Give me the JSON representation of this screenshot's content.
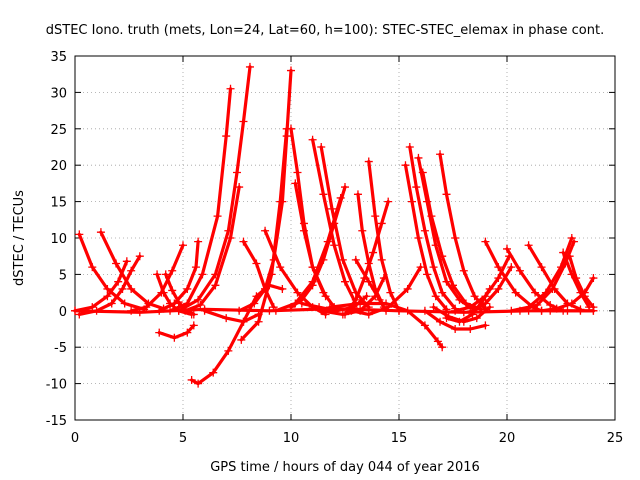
{
  "chart_data": {
    "type": "line",
    "title": "dSTEC Iono. truth (mets, Lon=24, Lat=60, h=100): STEC-STEC_elemax in phase cont.",
    "xlabel": "GPS time / hours of day 044 of year 2016",
    "ylabel": "dSTEC  / TECUs",
    "xlim": [
      0,
      25
    ],
    "ylim": [
      -15,
      35
    ],
    "xticks": [
      0,
      5,
      10,
      15,
      20,
      25
    ],
    "yticks": [
      -15,
      -10,
      -5,
      0,
      5,
      10,
      15,
      20,
      25,
      30,
      35
    ],
    "grid": true,
    "color": "#ff0000",
    "marker": "plus",
    "series": [
      {
        "x": [
          0.2,
          0.8,
          1.5,
          2.3,
          3.2
        ],
        "y": [
          10.5,
          6.0,
          3.0,
          1.0,
          0.2
        ]
      },
      {
        "x": [
          1.2,
          1.9,
          2.6,
          3.4,
          4.1
        ],
        "y": [
          10.8,
          6.5,
          3.0,
          1.0,
          0.3
        ]
      },
      {
        "x": [
          0.0,
          0.8,
          1.5,
          2.0,
          2.4
        ],
        "y": [
          0.0,
          0.5,
          2.0,
          4.0,
          6.8
        ]
      },
      {
        "x": [
          0.2,
          1.0,
          1.7,
          2.2,
          2.6,
          3.0
        ],
        "y": [
          -0.5,
          0.0,
          1.0,
          3.0,
          5.5,
          7.5
        ]
      },
      {
        "x": [
          2.6,
          3.3,
          4.0,
          4.5,
          5.0
        ],
        "y": [
          0.0,
          0.5,
          2.5,
          5.5,
          9.0
        ]
      },
      {
        "x": [
          3.8,
          4.1,
          4.4,
          4.8,
          5.4
        ],
        "y": [
          5.0,
          2.5,
          1.0,
          0.0,
          -0.5
        ]
      },
      {
        "x": [
          4.2,
          4.5,
          4.8,
          5.1,
          5.5
        ],
        "y": [
          5.0,
          2.8,
          1.2,
          0.2,
          -0.5
        ]
      },
      {
        "x": [
          3.9,
          4.6,
          5.2,
          5.6,
          5.7
        ],
        "y": [
          0.0,
          1.0,
          3.0,
          6.0,
          9.5
        ]
      },
      {
        "x": [
          3.9,
          4.6,
          5.2,
          5.5
        ],
        "y": [
          -3.0,
          -3.7,
          -3.0,
          -2.0
        ]
      },
      {
        "x": [
          4.4,
          5.2,
          5.9,
          6.6,
          7.0,
          7.2
        ],
        "y": [
          0.0,
          1.0,
          5.0,
          13.0,
          24.0,
          30.5
        ]
      },
      {
        "x": [
          4.8,
          5.7,
          6.5,
          7.1,
          7.5,
          7.8,
          8.1
        ],
        "y": [
          0.0,
          1.5,
          5.0,
          11.0,
          19.0,
          26.0,
          33.5
        ]
      },
      {
        "x": [
          5.1,
          5.8,
          6.5,
          7.2,
          7.6
        ],
        "y": [
          0.0,
          0.8,
          3.5,
          10.0,
          17.0
        ]
      },
      {
        "x": [
          5.4,
          5.7,
          6.4,
          7.1,
          7.8,
          8.4,
          9.0,
          9.6
        ],
        "y": [
          -9.5,
          -10.0,
          -8.5,
          -5.5,
          -1.5,
          2.0,
          3.5,
          3.0
        ]
      },
      {
        "x": [
          6.0,
          7.0,
          7.8,
          8.5
        ],
        "y": [
          0.0,
          -1.0,
          -1.5,
          -0.5
        ]
      },
      {
        "x": [
          7.8,
          8.4,
          8.8,
          9.2
        ],
        "y": [
          9.5,
          6.5,
          3.0,
          0.5
        ]
      },
      {
        "x": [
          7.7,
          8.5,
          9.1,
          9.5,
          9.8
        ],
        "y": [
          -4.0,
          -1.5,
          5.0,
          15.0,
          25.0
        ]
      },
      {
        "x": [
          7.6,
          8.3,
          8.8,
          9.2,
          9.6,
          9.8,
          10.0
        ],
        "y": [
          0.0,
          1.0,
          3.0,
          7.0,
          15.0,
          24.0,
          33.0
        ]
      },
      {
        "x": [
          8.8,
          9.5,
          10.3,
          11.0,
          11.6
        ],
        "y": [
          11.0,
          6.0,
          2.5,
          0.5,
          -0.5
        ]
      },
      {
        "x": [
          10.0,
          10.3,
          10.6,
          11.0,
          11.6
        ],
        "y": [
          25.0,
          19.0,
          12.0,
          6.0,
          2.0
        ]
      },
      {
        "x": [
          10.2,
          10.6,
          11.0,
          11.5,
          12.0
        ],
        "y": [
          17.5,
          11.0,
          6.0,
          2.5,
          0.5
        ]
      },
      {
        "x": [
          10.0,
          10.5,
          11.0,
          11.5,
          12.0,
          12.5
        ],
        "y": [
          0.5,
          1.5,
          3.5,
          7.0,
          12.0,
          17.0
        ]
      },
      {
        "x": [
          9.3,
          10.2,
          11.0,
          11.7,
          12.3
        ],
        "y": [
          0.0,
          1.0,
          4.0,
          9.5,
          15.5
        ]
      },
      {
        "x": [
          11.0,
          11.5,
          12.0,
          12.5,
          13.0
        ],
        "y": [
          23.5,
          16.0,
          9.0,
          4.0,
          1.0
        ]
      },
      {
        "x": [
          11.4,
          11.9,
          12.4,
          13.0,
          13.6
        ],
        "y": [
          22.5,
          14.0,
          7.0,
          2.5,
          0.5
        ]
      },
      {
        "x": [
          10.5,
          11.3,
          12.1,
          12.9,
          13.5
        ],
        "y": [
          1.0,
          0.5,
          0.0,
          0.5,
          2.0
        ]
      },
      {
        "x": [
          11.4,
          12.4,
          13.2,
          13.9,
          14.3
        ],
        "y": [
          0.0,
          -0.5,
          0.0,
          2.0,
          4.5
        ]
      },
      {
        "x": [
          12.5,
          13.0,
          13.4,
          13.8,
          14.2,
          14.5
        ],
        "y": [
          -0.5,
          1.5,
          4.5,
          8.0,
          12.0,
          15.0
        ]
      },
      {
        "x": [
          13.1,
          13.3,
          13.6,
          13.9,
          14.3
        ],
        "y": [
          16.0,
          11.0,
          6.5,
          3.0,
          0.5
        ]
      },
      {
        "x": [
          13.6,
          13.9,
          14.2,
          14.6,
          15.0
        ],
        "y": [
          20.5,
          13.0,
          7.0,
          2.5,
          0.0
        ]
      },
      {
        "x": [
          13.0,
          13.6,
          14.1,
          14.4
        ],
        "y": [
          7.0,
          4.0,
          1.5,
          0.0
        ]
      },
      {
        "x": [
          12.8,
          13.6,
          14.5,
          15.4,
          16.0
        ],
        "y": [
          0.0,
          -0.5,
          0.5,
          3.0,
          6.0
        ]
      },
      {
        "x": [
          11.8,
          13.2,
          14.4,
          15.4,
          16.2,
          16.8,
          17.0
        ],
        "y": [
          0.5,
          1.0,
          1.0,
          0.0,
          -2.0,
          -4.2,
          -5.0
        ]
      },
      {
        "x": [
          15.3,
          15.6,
          15.9,
          16.3,
          16.7,
          17.2
        ],
        "y": [
          20.0,
          15.0,
          10.0,
          5.0,
          2.0,
          0.2
        ]
      },
      {
        "x": [
          15.5,
          15.8,
          16.2,
          16.6,
          17.0,
          17.6
        ],
        "y": [
          22.5,
          17.0,
          11.0,
          6.0,
          2.5,
          0.3
        ]
      },
      {
        "x": [
          15.9,
          16.3,
          16.7,
          17.2,
          17.8,
          18.4
        ],
        "y": [
          21.0,
          15.0,
          9.0,
          4.0,
          1.5,
          0.3
        ]
      },
      {
        "x": [
          16.1,
          16.5,
          17.0,
          17.5,
          18.1,
          18.8
        ],
        "y": [
          19.0,
          13.0,
          7.5,
          3.5,
          1.0,
          0.2
        ]
      },
      {
        "x": [
          16.9,
          17.2,
          17.6,
          18.0,
          18.5,
          19.0
        ],
        "y": [
          21.5,
          16.0,
          10.0,
          5.5,
          2.0,
          0.2
        ]
      },
      {
        "x": [
          16.2,
          16.9,
          17.6,
          18.3,
          19.0
        ],
        "y": [
          0.0,
          -1.5,
          -2.5,
          -2.5,
          -2.0
        ]
      },
      {
        "x": [
          16.6,
          17.3,
          18.0,
          18.6,
          19.2
        ],
        "y": [
          0.5,
          -0.8,
          -1.5,
          -1.0,
          0.5
        ]
      },
      {
        "x": [
          17.2,
          17.8,
          18.4,
          18.9,
          19.2
        ],
        "y": [
          -1.0,
          -1.5,
          -0.5,
          1.5,
          3.0
        ]
      },
      {
        "x": [
          17.6,
          18.3,
          19.0,
          19.6,
          20.1
        ],
        "y": [
          0.0,
          0.5,
          2.0,
          4.5,
          7.5
        ]
      },
      {
        "x": [
          18.4,
          19.0,
          19.6,
          20.2
        ],
        "y": [
          0.0,
          1.0,
          3.0,
          6.0
        ]
      },
      {
        "x": [
          19.0,
          19.6,
          20.4,
          21.2,
          21.6
        ],
        "y": [
          9.5,
          6.0,
          2.5,
          0.5,
          0.0
        ]
      },
      {
        "x": [
          20.0,
          20.6,
          21.3,
          22.0,
          22.6
        ],
        "y": [
          8.5,
          5.5,
          2.5,
          0.8,
          0.0
        ]
      },
      {
        "x": [
          21.0,
          21.6,
          22.2,
          22.8,
          23.4
        ],
        "y": [
          9.0,
          6.0,
          3.0,
          1.0,
          0.2
        ]
      },
      {
        "x": [
          22.6,
          23.0,
          23.4,
          23.8
        ],
        "y": [
          8.0,
          5.0,
          2.5,
          0.5
        ]
      },
      {
        "x": [
          22.9,
          23.2,
          23.6,
          24.0
        ],
        "y": [
          7.5,
          4.5,
          2.0,
          0.5
        ]
      },
      {
        "x": [
          20.2,
          21.0,
          21.8,
          22.5,
          23.0
        ],
        "y": [
          0.0,
          0.5,
          2.5,
          6.0,
          10.0
        ]
      },
      {
        "x": [
          20.6,
          21.4,
          22.1,
          22.7,
          23.1
        ],
        "y": [
          0.0,
          0.8,
          3.0,
          6.5,
          9.5
        ]
      },
      {
        "x": [
          21.6,
          22.3,
          23.0,
          23.6,
          24.0
        ],
        "y": [
          0.0,
          0.3,
          1.0,
          2.5,
          4.5
        ]
      },
      {
        "x": [
          22.0,
          22.8,
          23.4,
          24.0
        ],
        "y": [
          0.0,
          0.0,
          0.0,
          0.0
        ]
      },
      {
        "x": [
          0.0,
          3.0,
          6.0,
          9.0,
          12.0,
          15.0,
          18.0,
          21.0,
          24.0
        ],
        "y": [
          0.0,
          -0.2,
          0.2,
          0.0,
          0.3,
          0.0,
          -0.2,
          0.0,
          0.0
        ]
      }
    ]
  }
}
